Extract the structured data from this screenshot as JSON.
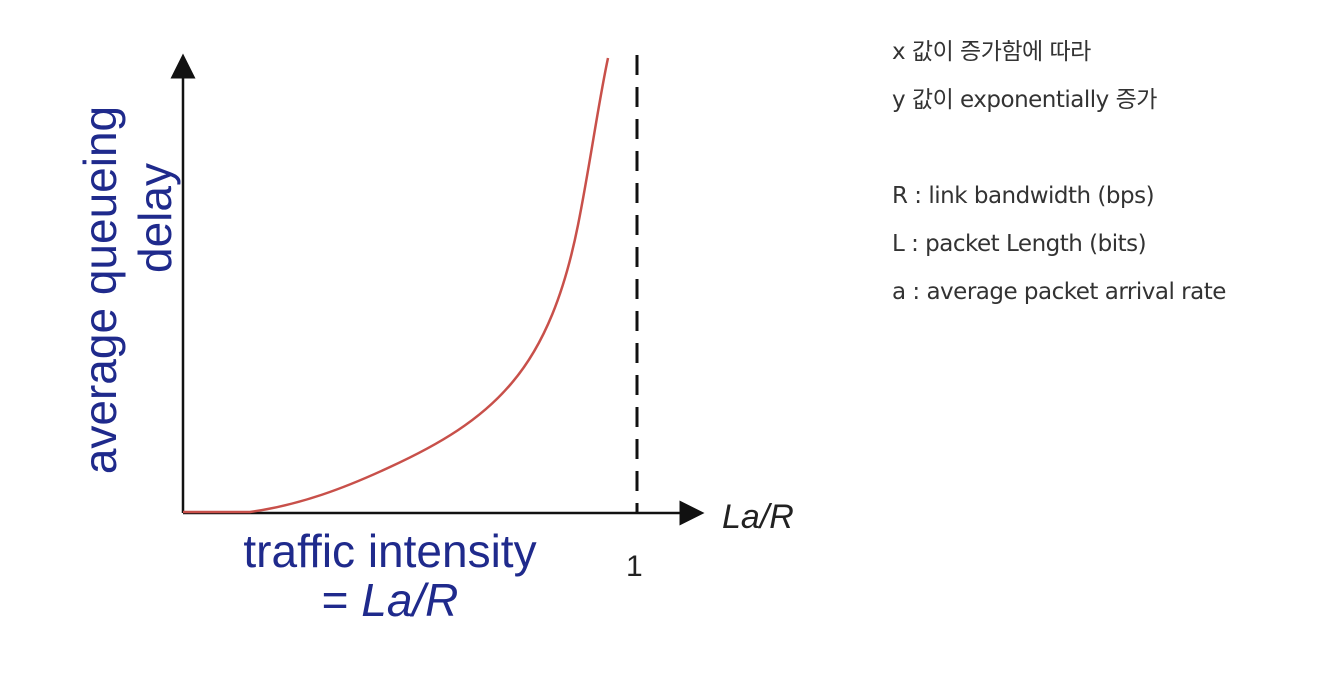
{
  "diagram": {
    "y_label_lines": [
      "average  queueing",
      "delay"
    ],
    "x_label_line1": "traffic intensity",
    "x_label_line2_prefix": "= ",
    "x_label_line2_italic": "La/R",
    "x_axis_name": "La/R",
    "asymptote_tick": "1",
    "colors": {
      "label_text": "#1f2a8c",
      "curve": "#c8504a",
      "axis": "#111111"
    }
  },
  "notes": {
    "line1": "x 값이 증가함에 따라",
    "line2": "y 값이 exponentially 증가",
    "line3": "R : link bandwidth (bps)",
    "line4": "L : packet Length (bits)",
    "line5": "a : average packet arrival rate"
  }
}
